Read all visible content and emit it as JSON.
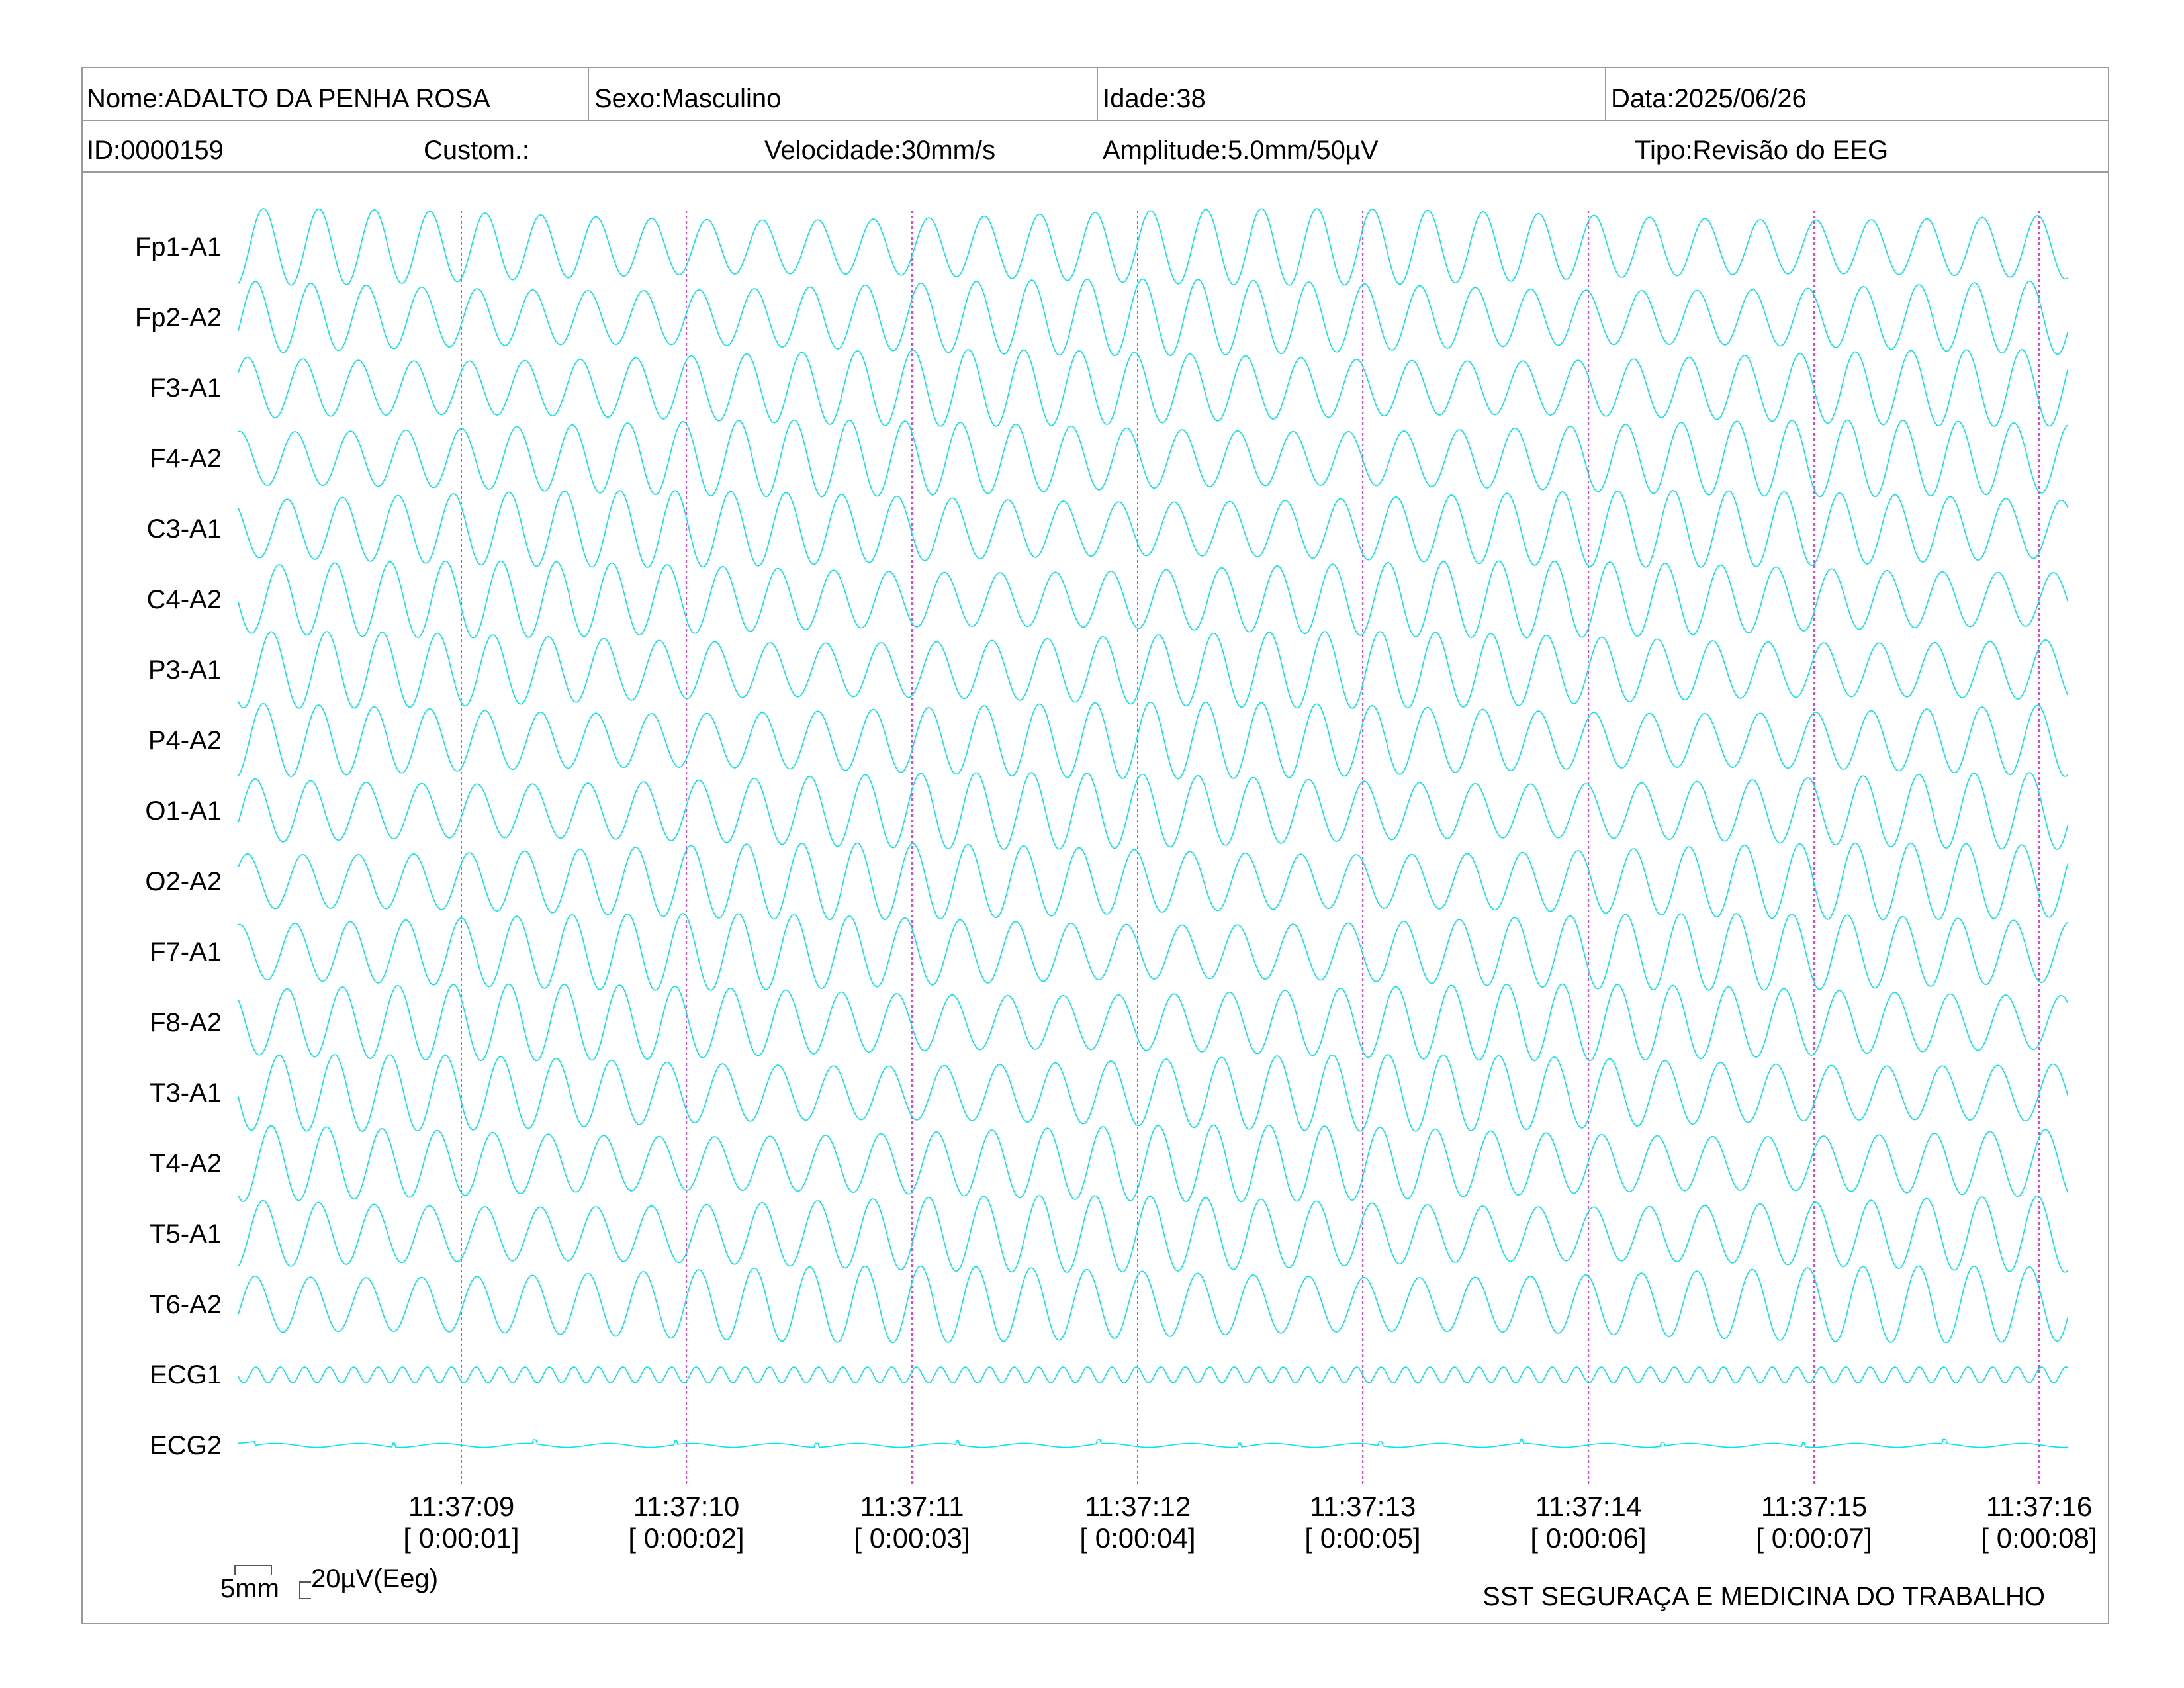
{
  "header": {
    "nome": "Nome:ADALTO DA PENHA ROSA",
    "sexo": "Sexo:Masculino",
    "idade": "Idade:38",
    "data": "Data:2025/06/26",
    "id": "ID:0000159",
    "custom": "Custom.:",
    "velocidade": "Velocidade:30mm/s",
    "amplitude": "Amplitude:5.0mm/50µV",
    "tipo": "Tipo:Revisão do EEG"
  },
  "channels": [
    "Fp1-A1",
    "Fp2-A2",
    "F3-A1",
    "F4-A2",
    "C3-A1",
    "C4-A2",
    "P3-A1",
    "P4-A2",
    "O1-A1",
    "O2-A2",
    "F7-A1",
    "F8-A2",
    "T3-A1",
    "T4-A2",
    "T5-A1",
    "T6-A2",
    "ECG1",
    "ECG2"
  ],
  "time_marks": [
    {
      "clock": "11:37:09",
      "elapsed": "[ 0:00:01]"
    },
    {
      "clock": "11:37:10",
      "elapsed": "[ 0:00:02]"
    },
    {
      "clock": "11:37:11",
      "elapsed": "[ 0:00:03]"
    },
    {
      "clock": "11:37:12",
      "elapsed": "[ 0:00:04]"
    },
    {
      "clock": "11:37:13",
      "elapsed": "[ 0:00:05]"
    },
    {
      "clock": "11:37:14",
      "elapsed": "[ 0:00:06]"
    },
    {
      "clock": "11:37:15",
      "elapsed": "[ 0:00:07]"
    },
    {
      "clock": "11:37:16",
      "elapsed": "[ 0:00:08]"
    }
  ],
  "scale": {
    "time": "5mm",
    "amplitude": "20µV(Eeg)"
  },
  "footer": "SST SEGURAÇA E MEDICINA DO TRABALHO",
  "colors": {
    "trace": "#00e5ee",
    "marker": "#e040e0",
    "border": "#9a9a9a"
  }
}
